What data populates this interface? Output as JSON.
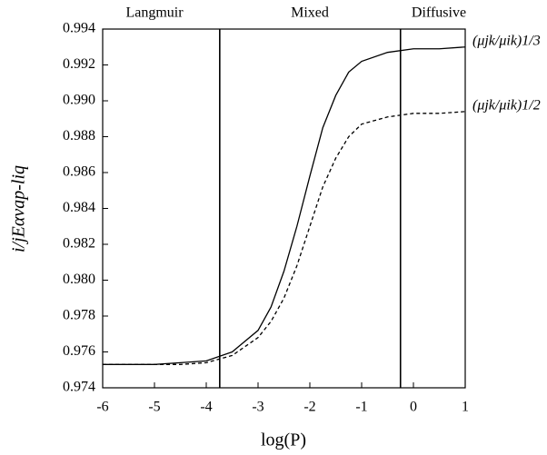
{
  "chart_data": {
    "type": "line",
    "x_label": "log(P)",
    "y_label": "i/jEαvap-liq",
    "region_labels": [
      "Langmuir",
      "Mixed",
      "Diffusive"
    ],
    "vlines": [
      -3.74,
      -0.25
    ],
    "x": [
      -6,
      -5,
      -4.5,
      -4,
      -3.5,
      -3,
      -2.75,
      -2.5,
      -2.25,
      -2,
      -1.75,
      -1.5,
      -1.25,
      -1,
      -0.5,
      0,
      0.5,
      1
    ],
    "series": [
      {
        "name": "(μjk/μik)1/3",
        "color": "#000000",
        "dash": false,
        "values": [
          0.9753,
          0.9753,
          0.9754,
          0.9755,
          0.976,
          0.9772,
          0.9785,
          0.9805,
          0.983,
          0.9858,
          0.9885,
          0.9903,
          0.9916,
          0.9922,
          0.9927,
          0.9929,
          0.9929,
          0.993
        ]
      },
      {
        "name": "(μjk/μik)1/2",
        "color": "#000000",
        "dash": true,
        "values": [
          0.9753,
          0.9753,
          0.9753,
          0.9754,
          0.9758,
          0.9768,
          0.9777,
          0.979,
          0.9808,
          0.983,
          0.9852,
          0.9868,
          0.988,
          0.9887,
          0.9891,
          0.9893,
          0.9893,
          0.9894
        ]
      }
    ],
    "xlim": [
      -6,
      1
    ],
    "xticks": [
      -6,
      -5,
      -4,
      -3,
      -2,
      -1,
      0,
      1
    ],
    "ylim": [
      0.974,
      0.994
    ],
    "yticks": [
      0.974,
      0.976,
      0.978,
      {
        "value": 0.98,
        "label": "0.980"
      },
      0.982,
      0.984,
      0.986,
      0.988,
      {
        "value": 0.99,
        "label": "0.990"
      },
      0.992,
      0.994
    ],
    "grid": false
  }
}
